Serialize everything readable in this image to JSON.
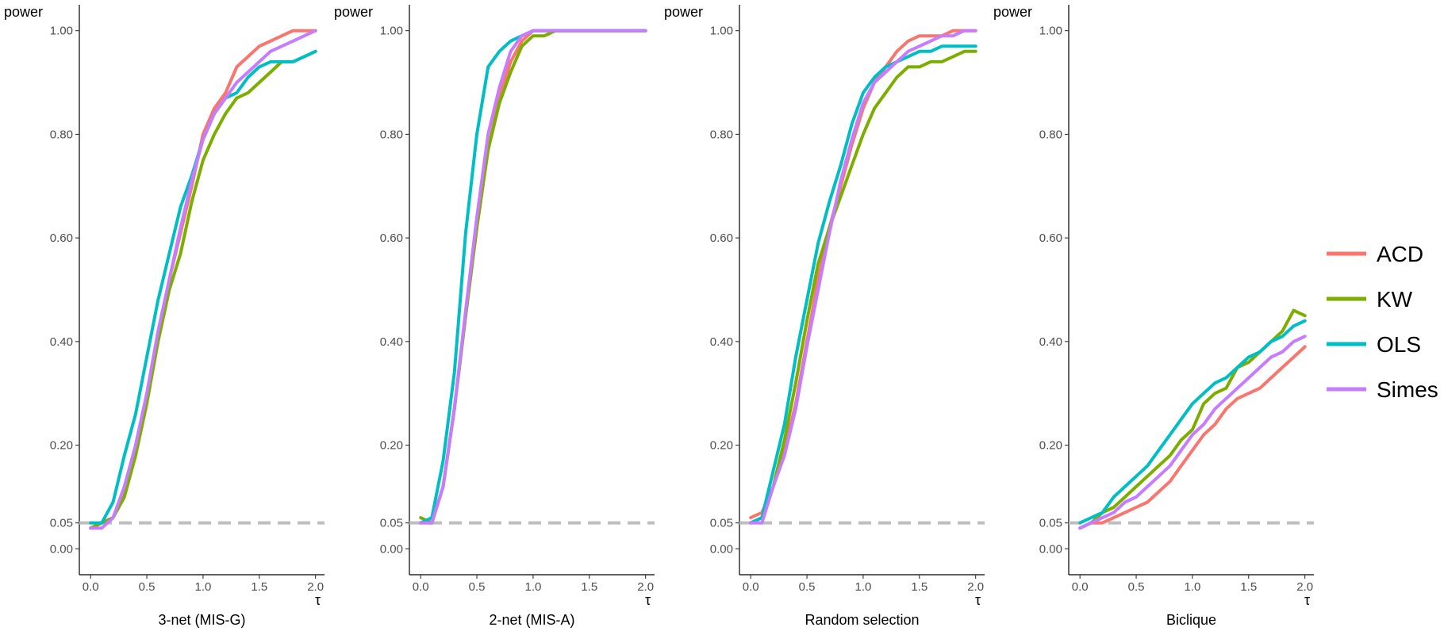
{
  "chart_data": {
    "type": "line",
    "colors": {
      "ACD": "#F8766D",
      "KW": "#7CAE00",
      "OLS": "#00BFC4",
      "Simes": "#C77CFF",
      "reference_line": "#BEBEBE",
      "axis": "#000000"
    },
    "legend": {
      "position": "right",
      "entries": [
        "ACD",
        "KW",
        "OLS",
        "Simes"
      ]
    },
    "y_axis": {
      "label": "power",
      "ticks": [
        0.0,
        0.05,
        0.2,
        0.4,
        0.6,
        0.8,
        1.0
      ],
      "tick_labels": [
        "0.00",
        "0.05",
        "0.20",
        "0.40",
        "0.60",
        "0.80",
        "1.00"
      ],
      "ylim": [
        -0.05,
        1.05
      ]
    },
    "x_axis": {
      "label": "τ",
      "ticks": [
        0.0,
        0.5,
        1.0,
        1.5,
        2.0
      ],
      "tick_labels": [
        "0.0",
        "0.5",
        "1.0",
        "1.5",
        "2.0"
      ],
      "xlim": [
        -0.1,
        2.08
      ]
    },
    "reference_line": {
      "y": 0.05,
      "style": "dashed"
    },
    "x": [
      0.0,
      0.1,
      0.2,
      0.3,
      0.4,
      0.5,
      0.6,
      0.7,
      0.8,
      0.9,
      1.0,
      1.1,
      1.2,
      1.3,
      1.4,
      1.5,
      1.6,
      1.7,
      1.8,
      1.9,
      2.0
    ],
    "panels": [
      {
        "title": "3-net (MIS-G)",
        "series": [
          {
            "name": "ACD",
            "values": [
              0.04,
              0.05,
              0.06,
              0.11,
              0.19,
              0.29,
              0.41,
              0.52,
              0.61,
              0.7,
              0.8,
              0.85,
              0.88,
              0.93,
              0.95,
              0.97,
              0.98,
              0.99,
              1.0,
              1.0,
              1.0
            ]
          },
          {
            "name": "KW",
            "values": [
              0.04,
              0.05,
              0.06,
              0.1,
              0.18,
              0.28,
              0.4,
              0.5,
              0.57,
              0.67,
              0.75,
              0.8,
              0.84,
              0.87,
              0.88,
              0.9,
              0.92,
              0.94,
              0.94,
              0.95,
              0.96
            ]
          },
          {
            "name": "OLS",
            "values": [
              0.05,
              0.05,
              0.09,
              0.18,
              0.26,
              0.37,
              0.48,
              0.57,
              0.66,
              0.72,
              0.79,
              0.84,
              0.87,
              0.88,
              0.91,
              0.93,
              0.94,
              0.94,
              0.94,
              0.95,
              0.96
            ]
          },
          {
            "name": "Simes",
            "values": [
              0.04,
              0.04,
              0.06,
              0.12,
              0.2,
              0.3,
              0.42,
              0.52,
              0.62,
              0.71,
              0.79,
              0.84,
              0.87,
              0.9,
              0.92,
              0.94,
              0.96,
              0.97,
              0.98,
              0.99,
              1.0
            ]
          }
        ]
      },
      {
        "title": "2-net (MIS-A)",
        "series": [
          {
            "name": "ACD",
            "values": [
              0.05,
              0.05,
              0.12,
              0.27,
              0.45,
              0.62,
              0.77,
              0.87,
              0.94,
              0.98,
              1.0,
              1.0,
              1.0,
              1.0,
              1.0,
              1.0,
              1.0,
              1.0,
              1.0,
              1.0,
              1.0
            ]
          },
          {
            "name": "KW",
            "values": [
              0.06,
              0.05,
              0.12,
              0.27,
              0.45,
              0.62,
              0.77,
              0.86,
              0.92,
              0.97,
              0.99,
              0.99,
              1.0,
              1.0,
              1.0,
              1.0,
              1.0,
              1.0,
              1.0,
              1.0,
              1.0
            ]
          },
          {
            "name": "OLS",
            "values": [
              0.05,
              0.06,
              0.17,
              0.34,
              0.61,
              0.8,
              0.93,
              0.96,
              0.98,
              0.99,
              1.0,
              1.0,
              1.0,
              1.0,
              1.0,
              1.0,
              1.0,
              1.0,
              1.0,
              1.0,
              1.0
            ]
          },
          {
            "name": "Simes",
            "values": [
              0.05,
              0.05,
              0.12,
              0.27,
              0.46,
              0.64,
              0.8,
              0.89,
              0.96,
              0.99,
              1.0,
              1.0,
              1.0,
              1.0,
              1.0,
              1.0,
              1.0,
              1.0,
              1.0,
              1.0,
              1.0
            ]
          }
        ]
      },
      {
        "title": "Random selection",
        "series": [
          {
            "name": "ACD",
            "values": [
              0.06,
              0.07,
              0.12,
              0.19,
              0.28,
              0.4,
              0.52,
              0.62,
              0.7,
              0.78,
              0.85,
              0.9,
              0.93,
              0.96,
              0.98,
              0.99,
              0.99,
              0.99,
              1.0,
              1.0,
              1.0
            ]
          },
          {
            "name": "KW",
            "values": [
              0.05,
              0.06,
              0.12,
              0.21,
              0.32,
              0.44,
              0.55,
              0.62,
              0.68,
              0.74,
              0.8,
              0.85,
              0.88,
              0.91,
              0.93,
              0.93,
              0.94,
              0.94,
              0.95,
              0.96,
              0.96
            ]
          },
          {
            "name": "OLS",
            "values": [
              0.05,
              0.06,
              0.15,
              0.24,
              0.37,
              0.48,
              0.59,
              0.67,
              0.74,
              0.82,
              0.88,
              0.91,
              0.93,
              0.94,
              0.95,
              0.96,
              0.96,
              0.97,
              0.97,
              0.97,
              0.97
            ]
          },
          {
            "name": "Simes",
            "values": [
              0.05,
              0.05,
              0.12,
              0.18,
              0.27,
              0.39,
              0.5,
              0.61,
              0.71,
              0.79,
              0.86,
              0.9,
              0.92,
              0.94,
              0.96,
              0.97,
              0.98,
              0.99,
              0.99,
              1.0,
              1.0
            ]
          }
        ]
      },
      {
        "title": "Biclique",
        "series": [
          {
            "name": "ACD",
            "values": [
              0.04,
              0.05,
              0.05,
              0.06,
              0.07,
              0.08,
              0.09,
              0.11,
              0.13,
              0.16,
              0.19,
              0.22,
              0.24,
              0.27,
              0.29,
              0.3,
              0.31,
              0.33,
              0.35,
              0.37,
              0.39
            ]
          },
          {
            "name": "KW",
            "values": [
              0.04,
              0.05,
              0.07,
              0.08,
              0.1,
              0.12,
              0.14,
              0.16,
              0.18,
              0.21,
              0.23,
              0.28,
              0.3,
              0.31,
              0.35,
              0.36,
              0.38,
              0.4,
              0.42,
              0.46,
              0.45
            ]
          },
          {
            "name": "OLS",
            "values": [
              0.05,
              0.06,
              0.07,
              0.1,
              0.12,
              0.14,
              0.16,
              0.19,
              0.22,
              0.25,
              0.28,
              0.3,
              0.32,
              0.33,
              0.35,
              0.37,
              0.38,
              0.4,
              0.41,
              0.43,
              0.44
            ]
          },
          {
            "name": "Simes",
            "values": [
              0.04,
              0.05,
              0.06,
              0.07,
              0.09,
              0.1,
              0.12,
              0.14,
              0.16,
              0.19,
              0.22,
              0.24,
              0.27,
              0.29,
              0.31,
              0.33,
              0.35,
              0.37,
              0.38,
              0.4,
              0.41
            ]
          }
        ]
      }
    ]
  }
}
